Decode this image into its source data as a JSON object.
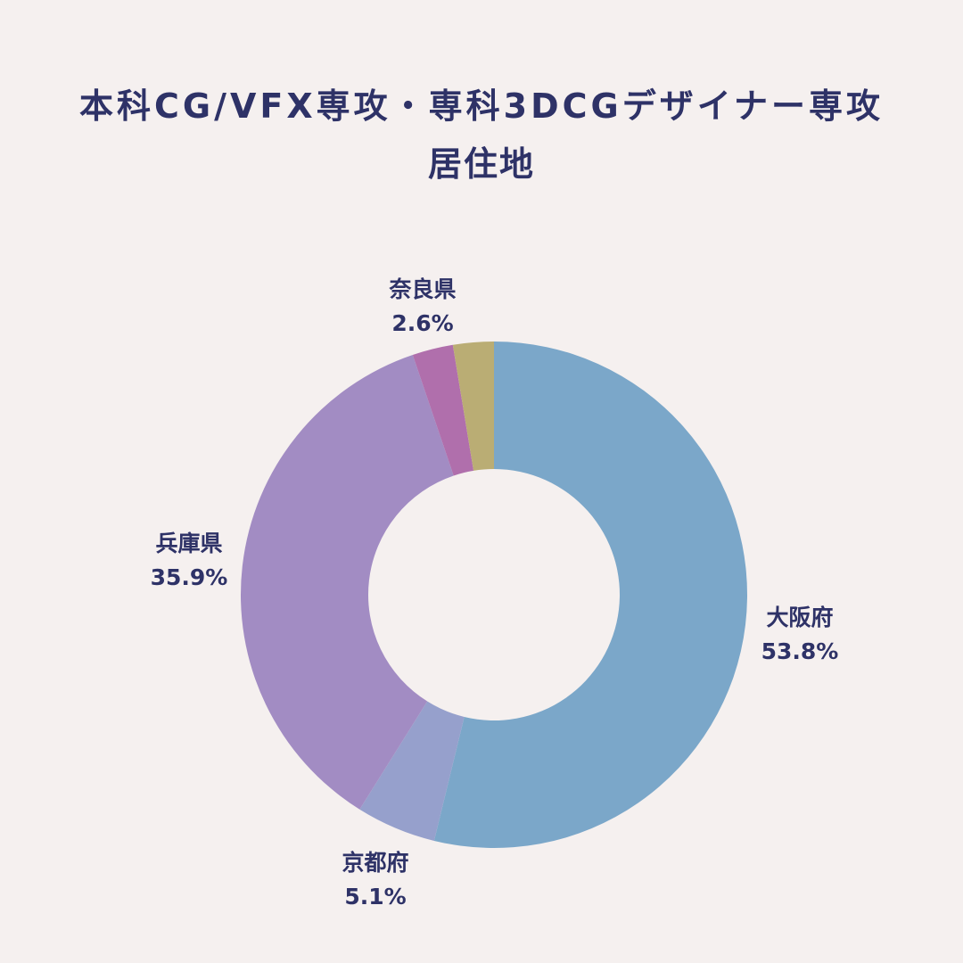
{
  "chart_data": {
    "type": "pie",
    "title_line1": "本科CG/VFX専攻・専科3DCGデザイナー専攻",
    "title_line2": "居住地",
    "donut": true,
    "legend": "none",
    "slices": [
      {
        "label": "大阪府",
        "value": 53.8,
        "value_label": "53.8%",
        "color": "#7ba7c9"
      },
      {
        "label": "京都府",
        "value": 5.1,
        "value_label": "5.1%",
        "color": "#96a0cc"
      },
      {
        "label": "兵庫県",
        "value": 35.9,
        "value_label": "35.9%",
        "color": "#a28cc3"
      },
      {
        "label": "",
        "value": 2.6,
        "value_label": "",
        "color": "#b06fac"
      },
      {
        "label": "奈良県",
        "value": 2.6,
        "value_label": "2.6%",
        "color": "#baad74"
      }
    ]
  }
}
